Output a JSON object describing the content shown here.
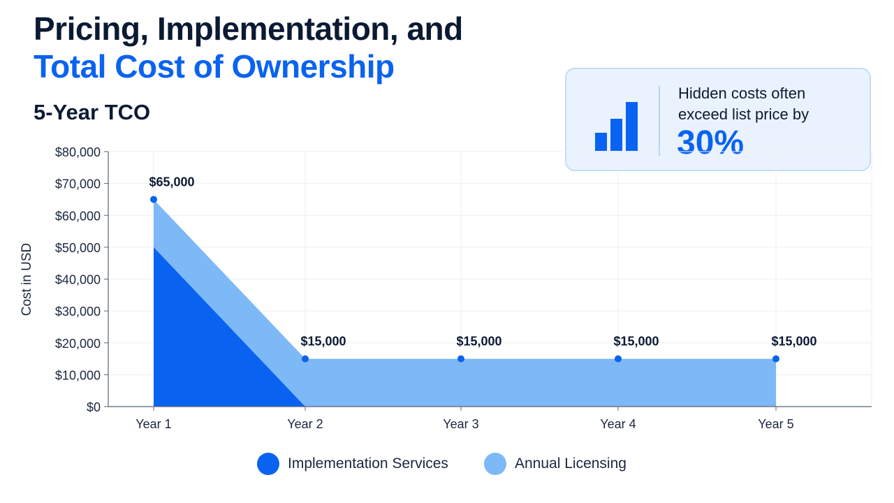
{
  "header": {
    "title_line1": "Pricing, Implementation, and",
    "title_line2": "Total Cost of Ownership",
    "subtitle": "5-Year TCO"
  },
  "callout": {
    "icon": "bar-chart-icon",
    "text_line1": "Hidden costs often",
    "text_line2": "exceed list price by",
    "value": "30%"
  },
  "colors": {
    "title_dark": "#0b1a33",
    "title_accent": "#0a63f0",
    "implementation": "#0a63f0",
    "licensing": "#7db8f7",
    "marker": "#0a63f0"
  },
  "chart_data": {
    "type": "area",
    "stacked": true,
    "categories": [
      "Year 1",
      "Year 2",
      "Year 3",
      "Year 4",
      "Year 5"
    ],
    "series": [
      {
        "name": "Implementation Services",
        "values": [
          50000,
          0,
          0,
          0,
          0
        ]
      },
      {
        "name": "Annual Licensing",
        "values": [
          15000,
          15000,
          15000,
          15000,
          15000
        ]
      }
    ],
    "totals": [
      65000,
      15000,
      15000,
      15000,
      15000
    ],
    "data_labels": [
      "$65,000",
      "$15,000",
      "$15,000",
      "$15,000",
      "$15,000"
    ],
    "ylabel": "Cost in USD",
    "ylim": [
      0,
      80000
    ],
    "yticks": [
      0,
      10000,
      20000,
      30000,
      40000,
      50000,
      60000,
      70000,
      80000
    ],
    "ytick_labels": [
      "$0",
      "$10,000",
      "$20,000",
      "$30,000",
      "$40,000",
      "$50,000",
      "$60,000",
      "$70,000",
      "$80,000"
    ],
    "grid": true,
    "legend_position": "bottom-center"
  }
}
